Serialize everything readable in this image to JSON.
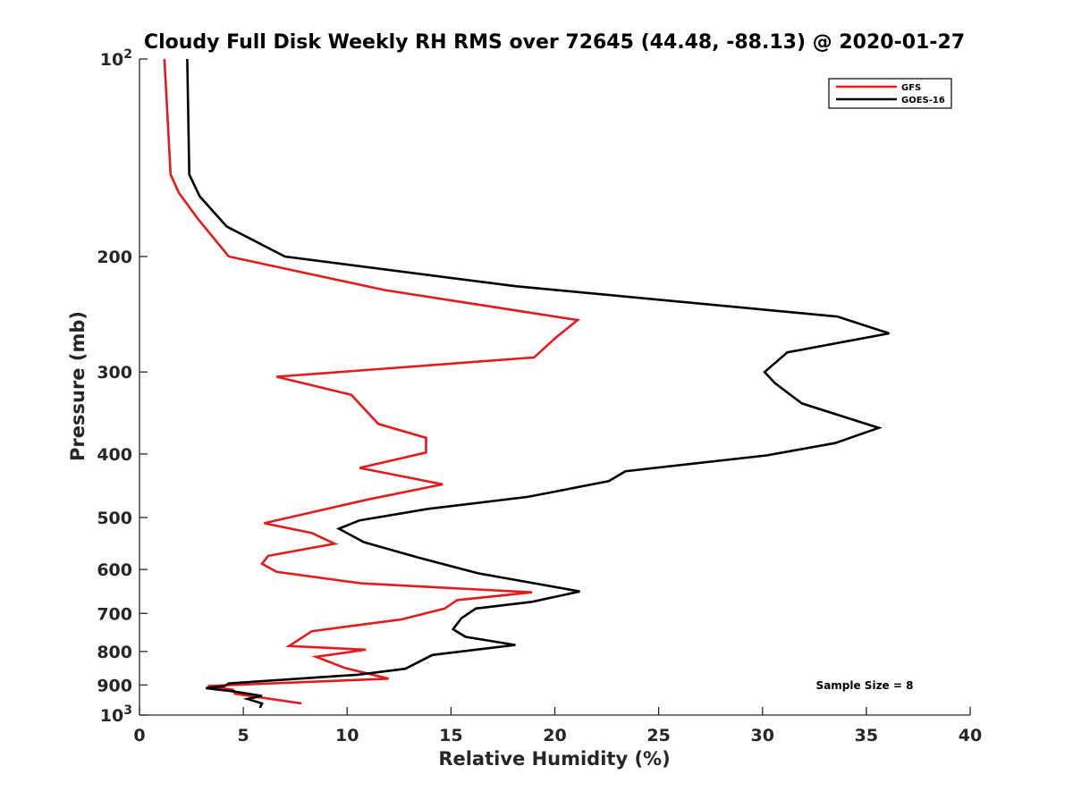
{
  "chart_data": {
    "type": "line",
    "title": "Cloudy Full Disk Weekly RH RMS over 72645 (44.48, -88.13) @ 2020-01-27",
    "xlabel": "Relative Humidity (%)",
    "ylabel": "Pressure (mb)",
    "xlim": [
      0,
      40
    ],
    "ylim": [
      100,
      1000
    ],
    "y_scale": "log",
    "y_reversed": true,
    "grid": false,
    "legend_position": "top-right",
    "x_ticks": [
      0,
      5,
      10,
      15,
      20,
      25,
      30,
      35,
      40
    ],
    "x_tick_labels": [
      "0",
      "5",
      "10",
      "15",
      "20",
      "25",
      "30",
      "35",
      "40"
    ],
    "y_ticks": [
      100,
      200,
      300,
      400,
      500,
      600,
      700,
      800,
      900,
      1000
    ],
    "y_tick_labels": [
      "10^2",
      "200",
      "300",
      "400",
      "500",
      "600",
      "700",
      "800",
      "900",
      "10^3"
    ],
    "annotation": "Sample Size = 8",
    "series": [
      {
        "name": "GFS",
        "color": "#e41a1c",
        "points": [
          [
            1.2,
            100
          ],
          [
            1.5,
            150
          ],
          [
            1.9,
            160
          ],
          [
            2.8,
            175
          ],
          [
            4.3,
            200
          ],
          [
            11.8,
            225
          ],
          [
            21.1,
            250
          ],
          [
            20.1,
            265
          ],
          [
            19.0,
            285
          ],
          [
            6.6,
            305
          ],
          [
            10.2,
            325
          ],
          [
            11.5,
            360
          ],
          [
            13.8,
            378
          ],
          [
            13.8,
            398
          ],
          [
            10.6,
            420
          ],
          [
            14.6,
            445
          ],
          [
            10.9,
            470
          ],
          [
            6.0,
            510
          ],
          [
            8.3,
            528
          ],
          [
            9.4,
            548
          ],
          [
            6.2,
            572
          ],
          [
            5.9,
            588
          ],
          [
            6.6,
            605
          ],
          [
            10.7,
            630
          ],
          [
            18.9,
            650
          ],
          [
            15.3,
            668
          ],
          [
            14.7,
            688
          ],
          [
            12.6,
            715
          ],
          [
            8.3,
            745
          ],
          [
            7.2,
            785
          ],
          [
            10.9,
            795
          ],
          [
            8.5,
            815
          ],
          [
            9.9,
            848
          ],
          [
            12.0,
            880
          ],
          [
            3.3,
            903
          ],
          [
            4.5,
            915
          ],
          [
            4.6,
            928
          ],
          [
            7.8,
            960
          ]
        ]
      },
      {
        "name": "GOES-16",
        "color": "#000000",
        "points": [
          [
            2.3,
            100
          ],
          [
            2.4,
            150
          ],
          [
            2.9,
            162
          ],
          [
            4.2,
            180
          ],
          [
            7.0,
            200
          ],
          [
            18.1,
            222
          ],
          [
            33.6,
            247
          ],
          [
            36.1,
            262
          ],
          [
            31.2,
            280
          ],
          [
            30.1,
            300
          ],
          [
            30.6,
            312
          ],
          [
            31.9,
            335
          ],
          [
            35.6,
            365
          ],
          [
            33.5,
            385
          ],
          [
            30.2,
            402
          ],
          [
            23.4,
            425
          ],
          [
            22.6,
            440
          ],
          [
            18.7,
            465
          ],
          [
            13.9,
            485
          ],
          [
            10.6,
            505
          ],
          [
            9.6,
            520
          ],
          [
            10.8,
            545
          ],
          [
            13.4,
            575
          ],
          [
            16.3,
            608
          ],
          [
            21.2,
            648
          ],
          [
            18.9,
            672
          ],
          [
            16.2,
            688
          ],
          [
            15.5,
            712
          ],
          [
            15.1,
            740
          ],
          [
            15.7,
            760
          ],
          [
            18.1,
            782
          ],
          [
            14.1,
            810
          ],
          [
            12.8,
            850
          ],
          [
            10.5,
            868
          ],
          [
            4.3,
            895
          ],
          [
            4.1,
            903
          ],
          [
            3.2,
            910
          ],
          [
            4.5,
            920
          ],
          [
            5.9,
            935
          ],
          [
            5.2,
            945
          ],
          [
            5.9,
            960
          ],
          [
            5.8,
            975
          ]
        ]
      }
    ]
  }
}
